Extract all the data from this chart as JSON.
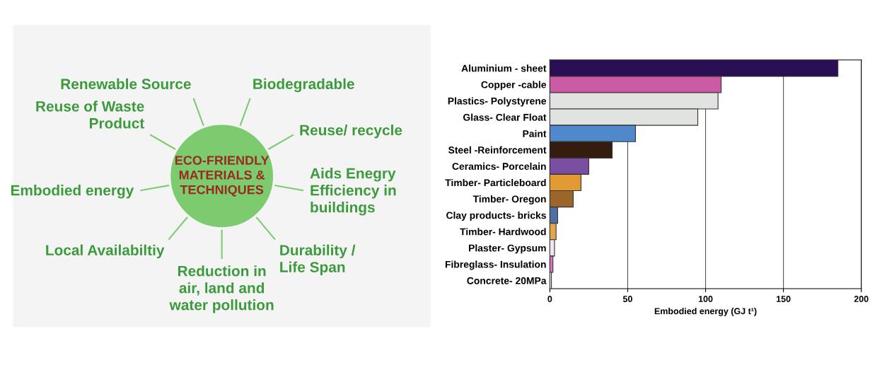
{
  "chart_data": [
    {
      "type": "other",
      "title": "ECO-FRIENDLY\nMATERIALS &\nTECHNIQUES",
      "annotations": [
        "Renewable Source",
        "Biodegradable",
        "Reuse/ recycle",
        "Aids Enegry\nEfficiency in\nbuildings",
        "Durability /\nLife Span",
        "Reduction in\nair, land and\nwater pollution",
        "Local Availabiltiy",
        "Embodied energy",
        "Reuse of Waste\nProduct"
      ]
    },
    {
      "type": "bar",
      "orientation": "horizontal",
      "xlabel": "Embodied energy (GJ t¹)",
      "categories": [
        "Aluminium - sheet",
        "Copper -cable",
        "Plastics- Polystyrene",
        "Glass- Clear Float",
        "Paint",
        "Steel -Reinforcement",
        "Ceramics- Porcelain",
        "Timber- Particleboard",
        "Timber- Oregon",
        "Clay products- bricks",
        "Timber- Hardwood",
        "Plaster- Gypsum",
        "Fibreglass- Insulation",
        "Concrete- 20MPa"
      ],
      "values": [
        185,
        110,
        108,
        95,
        55,
        40,
        25,
        20,
        15,
        5,
        4,
        3,
        2,
        1
      ],
      "colors": [
        "#2a0f55",
        "#c95aa3",
        "#e0e3e0",
        "#e0e3e0",
        "#5089cb",
        "#341d0f",
        "#7a4ea0",
        "#e29a32",
        "#9b662b",
        "#4c6fa6",
        "#e3a64a",
        "#efe6f0",
        "#d772be",
        "#f0f0f0"
      ],
      "xlim": [
        0,
        200
      ],
      "xticks": [
        0,
        50,
        100,
        150,
        200
      ],
      "grid": "x"
    }
  ]
}
